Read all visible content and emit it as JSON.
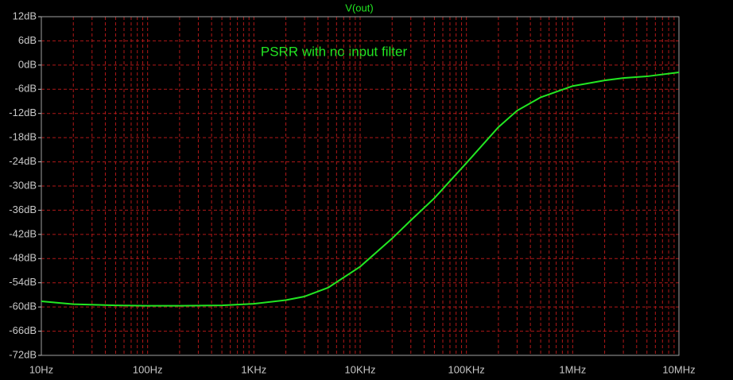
{
  "chart_data": {
    "type": "line",
    "title": "V(out)",
    "annotation": "PSRR with no input filter",
    "xscale": "log",
    "grid": true,
    "x": [
      10,
      20,
      50,
      100,
      200,
      500,
      1000,
      2000,
      3000,
      5000,
      10000,
      20000,
      30000,
      50000,
      100000,
      200000,
      300000,
      500000,
      1000000,
      2000000,
      3000000,
      5000000,
      10000000
    ],
    "series": [
      {
        "name": "V(out)",
        "color": "#22e622",
        "values": [
          -58.6,
          -59.3,
          -59.6,
          -59.7,
          -59.7,
          -59.6,
          -59.2,
          -58.3,
          -57.4,
          -55.2,
          -50,
          -43,
          -38.5,
          -33,
          -24.3,
          -15.4,
          -11.3,
          -8,
          -5.2,
          -3.8,
          -3.2,
          -2.8,
          -1.8
        ]
      }
    ],
    "xlim": [
      10,
      10000000
    ],
    "xticks": [
      {
        "value": 10,
        "label": "10Hz"
      },
      {
        "value": 100,
        "label": "100Hz"
      },
      {
        "value": 1000,
        "label": "1KHz"
      },
      {
        "value": 10000,
        "label": "10KHz"
      },
      {
        "value": 100000,
        "label": "100KHz"
      },
      {
        "value": 1000000,
        "label": "1MHz"
      },
      {
        "value": 10000000,
        "label": "10MHz"
      }
    ],
    "xminorticks": [
      20,
      30,
      40,
      50,
      60,
      70,
      80,
      90,
      200,
      300,
      400,
      500,
      600,
      700,
      800,
      900,
      2000,
      3000,
      4000,
      5000,
      6000,
      7000,
      8000,
      9000,
      20000,
      30000,
      40000,
      50000,
      60000,
      70000,
      80000,
      90000,
      200000,
      300000,
      400000,
      500000,
      600000,
      700000,
      800000,
      900000,
      2000000,
      3000000,
      4000000,
      5000000,
      6000000,
      7000000,
      8000000,
      9000000
    ],
    "ylim": [
      -72,
      12
    ],
    "yticks": [
      {
        "value": 12,
        "label": "12dB"
      },
      {
        "value": 6,
        "label": "6dB"
      },
      {
        "value": 0,
        "label": "0dB"
      },
      {
        "value": -6,
        "label": "-6dB"
      },
      {
        "value": -12,
        "label": "-12dB"
      },
      {
        "value": -18,
        "label": "-18dB"
      },
      {
        "value": -24,
        "label": "-24dB"
      },
      {
        "value": -30,
        "label": "-30dB"
      },
      {
        "value": -36,
        "label": "-36dB"
      },
      {
        "value": -42,
        "label": "-42dB"
      },
      {
        "value": -48,
        "label": "-48dB"
      },
      {
        "value": -54,
        "label": "-54dB"
      },
      {
        "value": -60,
        "label": "-60dB"
      },
      {
        "value": -66,
        "label": "-66dB"
      },
      {
        "value": -72,
        "label": "-72dB"
      }
    ]
  }
}
